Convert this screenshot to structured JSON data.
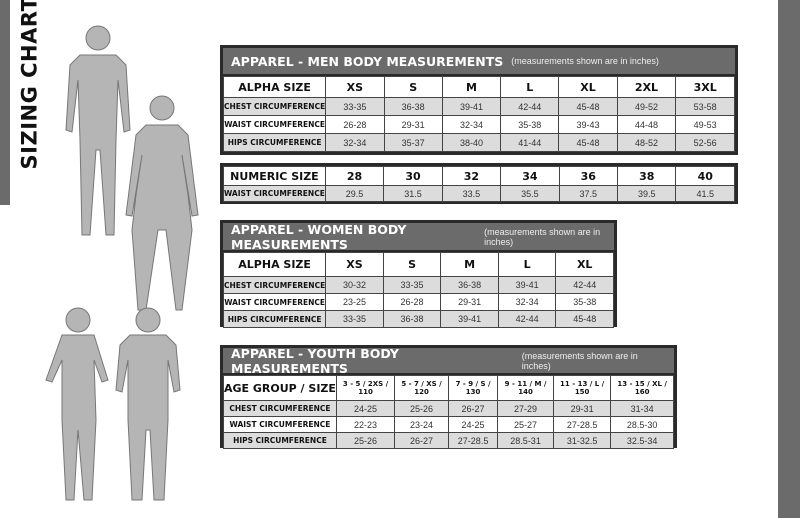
{
  "title": "SIZING CHART",
  "colors": {
    "bar": "#6b6b6b",
    "border": "#2a2a2a",
    "stripe": "#dcdcdc"
  },
  "men": {
    "title": "APPAREL - MEN BODY MEASUREMENTS",
    "note": "(measurements shown are in inches)",
    "header": [
      "ALPHA SIZE",
      "XS",
      "S",
      "M",
      "L",
      "XL",
      "2XL",
      "3XL"
    ],
    "rows": [
      [
        "CHEST CIRCUMFERENCE",
        "33-35",
        "36-38",
        "39-41",
        "42-44",
        "45-48",
        "49-52",
        "53-58"
      ],
      [
        "WAIST CIRCUMFERENCE",
        "26-28",
        "29-31",
        "32-34",
        "35-38",
        "39-43",
        "44-48",
        "49-53"
      ],
      [
        "HIPS CIRCUMFERENCE",
        "32-34",
        "35-37",
        "38-40",
        "41-44",
        "45-48",
        "48-52",
        "52-56"
      ]
    ]
  },
  "men_numeric": {
    "header": [
      "NUMERIC SIZE",
      "28",
      "30",
      "32",
      "34",
      "36",
      "38",
      "40"
    ],
    "rows": [
      [
        "WAIST CIRCUMFERENCE",
        "29.5",
        "31.5",
        "33.5",
        "35.5",
        "37.5",
        "39.5",
        "41.5"
      ]
    ]
  },
  "women": {
    "title": "APPAREL - WOMEN BODY MEASUREMENTS",
    "note": "(measurements shown are in inches)",
    "header": [
      "ALPHA SIZE",
      "XS",
      "S",
      "M",
      "L",
      "XL"
    ],
    "rows": [
      [
        "CHEST CIRCUMFERENCE",
        "30-32",
        "33-35",
        "36-38",
        "39-41",
        "42-44"
      ],
      [
        "WAIST CIRCUMFERENCE",
        "23-25",
        "26-28",
        "29-31",
        "32-34",
        "35-38"
      ],
      [
        "HIPS CIRCUMFERENCE",
        "33-35",
        "36-38",
        "39-41",
        "42-44",
        "45-48"
      ]
    ]
  },
  "youth": {
    "title": "APPAREL - YOUTH BODY MEASUREMENTS",
    "note": "(measurements shown are in inches)",
    "header": [
      "AGE GROUP / SIZE",
      "3 - 5  /  2XS / 110",
      "5 - 7  /  XS / 120",
      "7 - 9  /  S / 130",
      "9 - 11  /  M / 140",
      "11 - 13  /  L / 150",
      "13 - 15 /  XL / 160"
    ],
    "rows": [
      [
        "CHEST CIRCUMFERENCE",
        "24-25",
        "25-26",
        "26-27",
        "27-29",
        "29-31",
        "31-34"
      ],
      [
        "WAIST CIRCUMFERENCE",
        "22-23",
        "23-24",
        "24-25",
        "25-27",
        "27-28.5",
        "28.5-30"
      ],
      [
        "HIPS CIRCUMFERENCE",
        "25-26",
        "26-27",
        "27-28.5",
        "28.5-31",
        "31-32.5",
        "32.5-34"
      ]
    ]
  }
}
